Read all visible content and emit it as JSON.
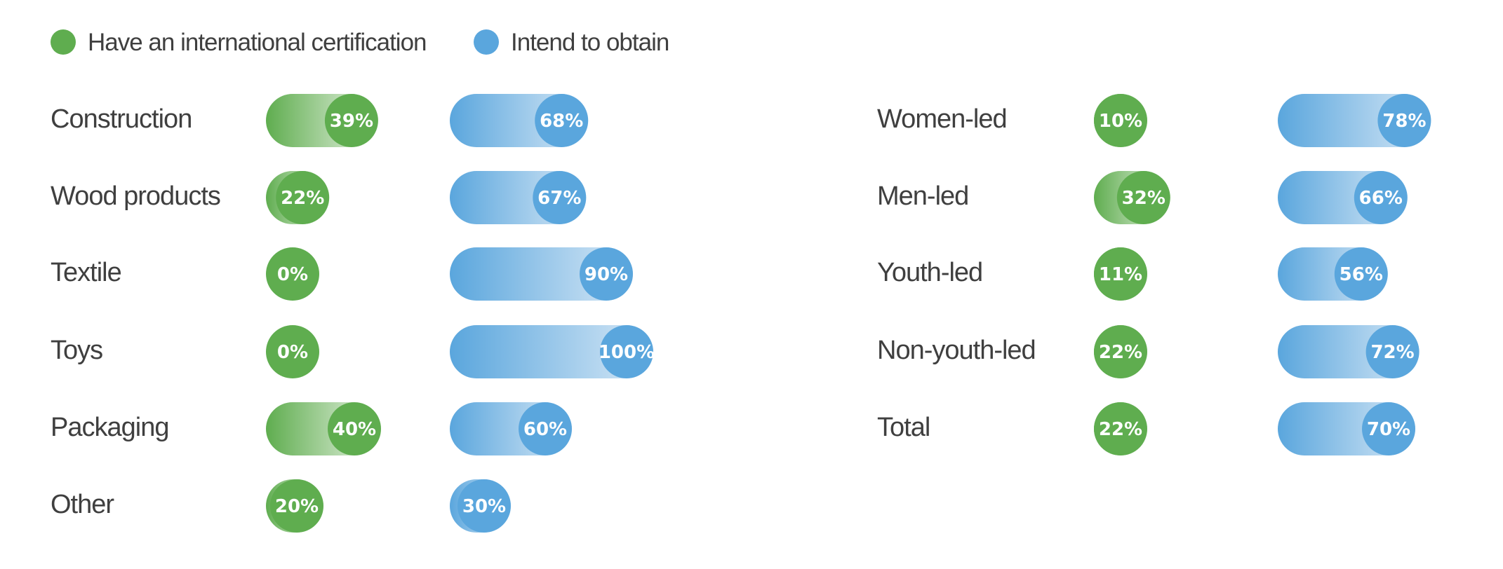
{
  "chart_data": {
    "type": "bar",
    "orientation": "horizontal",
    "unit": "%",
    "legend": {
      "placement": "top-left",
      "items": [
        {
          "label": "Have an international certification",
          "color": "#5fad4f"
        },
        {
          "label": "Intend to obtain",
          "color": "#5aa6dd"
        }
      ]
    },
    "panels": [
      {
        "categories": [
          "Construction",
          "Wood products",
          "Textile",
          "Toys",
          "Packaging",
          "Other"
        ],
        "series": [
          {
            "name": "Have an international certification",
            "values": [
              39,
              22,
              0,
              0,
              40,
              20
            ],
            "labels": [
              "39%",
              "22%",
              "0%",
              "0%",
              "40%",
              "20%"
            ]
          },
          {
            "name": "Intend to obtain",
            "values": [
              68,
              67,
              90,
              100,
              60,
              30
            ],
            "labels": [
              "68%",
              "67%",
              "90%",
              "100%",
              "60%",
              "30%"
            ]
          }
        ]
      },
      {
        "categories": [
          "Women-led",
          "Men-led",
          "Youth-led",
          "Non-youth-led",
          "Total"
        ],
        "series": [
          {
            "name": "Have an international certification",
            "values": [
              10,
              32,
              11,
              22,
              22
            ],
            "labels": [
              "10%",
              "32%",
              "11%",
              "22%",
              "22%"
            ]
          },
          {
            "name": "Intend to obtain",
            "values": [
              78,
              66,
              56,
              72,
              70
            ],
            "labels": [
              "78%",
              "66%",
              "56%",
              "72%",
              "70%"
            ]
          }
        ]
      }
    ],
    "xlim": [
      0,
      100
    ],
    "grid": false
  },
  "colors": {
    "green": "#5fad4f",
    "green_light": "#e9f3e5",
    "blue": "#5aa6dd",
    "blue_light": "#d7e8f6",
    "text": "#3f3f3f"
  }
}
